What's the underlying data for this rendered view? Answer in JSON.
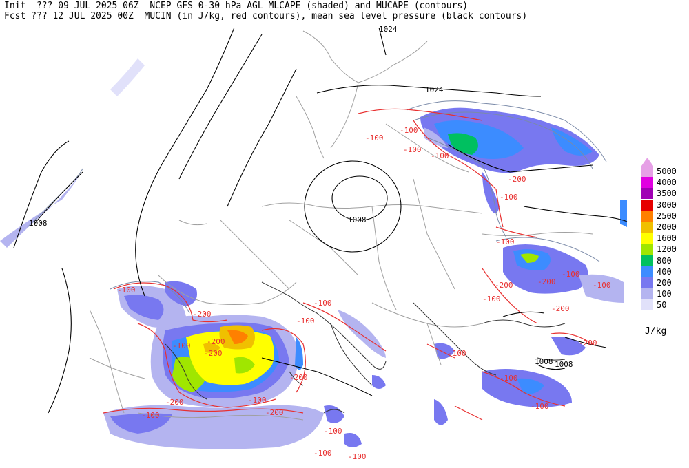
{
  "header": {
    "line1": "Init  ??? 09 JUL 2025 06Z  NCEP GFS 0-30 hPa AGL MLCAPE (shaded) and MUCAPE (contours)",
    "line2": "Fcst ??? 12 JUL 2025 00Z  MUCIN (in J/kg, red contours), mean sea level pressure (black contours)"
  },
  "legend": {
    "unit": "J/kg",
    "levels": [
      {
        "label": "5000",
        "color": "#e6a0e6"
      },
      {
        "label": "4000",
        "color": "#e100e1"
      },
      {
        "label": "3500",
        "color": "#a000b4"
      },
      {
        "label": "3000",
        "color": "#e60000"
      },
      {
        "label": "2500",
        "color": "#ff8000"
      },
      {
        "label": "2000",
        "color": "#f0c000"
      },
      {
        "label": "1600",
        "color": "#ffff00"
      },
      {
        "label": "1200",
        "color": "#a0e600"
      },
      {
        "label": "800",
        "color": "#00c060"
      },
      {
        "label": "400",
        "color": "#3c8cff"
      },
      {
        "label": "200",
        "color": "#7878f0"
      },
      {
        "label": "100",
        "color": "#b4b4f0"
      },
      {
        "label": "50",
        "color": "#e1e1fa"
      }
    ]
  },
  "contour_labels": {
    "pressure": [
      "1024",
      "1024",
      "1008",
      "1008",
      "1008",
      "1008"
    ],
    "cin": [
      "-100",
      "-100",
      "-100",
      "-100",
      "-200",
      "-100",
      "-200",
      "-100",
      "-200",
      "-100",
      "-200",
      "-100",
      "-100",
      "-200",
      "-100",
      "-200",
      "-100",
      "-200",
      "-200",
      "-100",
      "-100",
      "-200",
      "-100",
      "-200",
      "-100",
      "-100",
      "-200",
      "-100",
      "-100",
      "-100",
      "-100",
      "-100"
    ]
  },
  "colors": {
    "pressure": "#000000",
    "cin": "#e83030",
    "border": "#a0a0a0",
    "mucape": "#7a8aa8"
  }
}
